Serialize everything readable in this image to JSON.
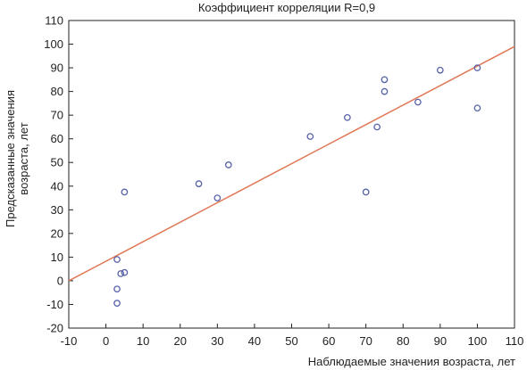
{
  "chart_data": {
    "type": "scatter",
    "title": "Коэффициент корреляции R=0,9",
    "xlabel": "Наблюдаемые значения возраста, лет",
    "ylabel_lines": [
      "Предсказанные значения",
      "возраста, лет"
    ],
    "xlim": [
      -10,
      110
    ],
    "ylim": [
      -20,
      110
    ],
    "xticks": [
      -10,
      0,
      10,
      20,
      30,
      40,
      50,
      60,
      70,
      80,
      90,
      100,
      110
    ],
    "yticks": [
      -20,
      -10,
      0,
      10,
      20,
      30,
      40,
      50,
      60,
      70,
      80,
      90,
      100,
      110
    ],
    "grid": false,
    "points": [
      {
        "x": 3,
        "y": 9
      },
      {
        "x": 4,
        "y": 3
      },
      {
        "x": 5,
        "y": 3.5
      },
      {
        "x": 3,
        "y": -3.5
      },
      {
        "x": 3,
        "y": -9.5
      },
      {
        "x": 5,
        "y": 37.5
      },
      {
        "x": 25,
        "y": 41
      },
      {
        "x": 30,
        "y": 35
      },
      {
        "x": 33,
        "y": 49
      },
      {
        "x": 55,
        "y": 61
      },
      {
        "x": 65,
        "y": 69
      },
      {
        "x": 70,
        "y": 37.5
      },
      {
        "x": 73,
        "y": 65
      },
      {
        "x": 75,
        "y": 85
      },
      {
        "x": 75,
        "y": 80
      },
      {
        "x": 84,
        "y": 75.5
      },
      {
        "x": 90,
        "y": 89
      },
      {
        "x": 100,
        "y": 90
      },
      {
        "x": 100,
        "y": 73
      }
    ],
    "regression_line": {
      "x": [
        -10,
        110
      ],
      "y": [
        0,
        99
      ]
    },
    "colors": {
      "points": "#5560a8",
      "line": "#e07856",
      "axes": "#222222"
    }
  }
}
